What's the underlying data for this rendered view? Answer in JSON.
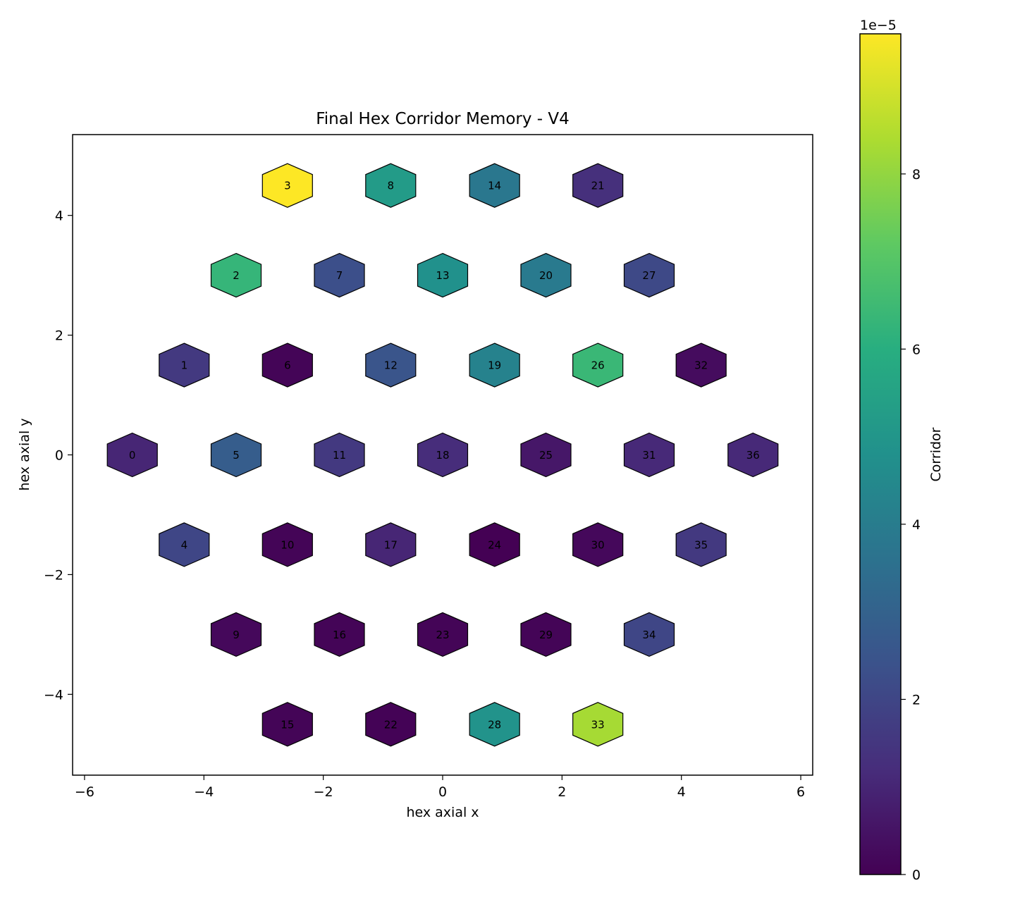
{
  "chart_data": {
    "type": "hexbin-scatter",
    "title": "Final Hex Corridor Memory - V4",
    "xlabel": "hex axial x",
    "ylabel": "hex axial y",
    "xlim": [
      -6.2,
      6.2
    ],
    "ylim": [
      -5.35,
      5.35
    ],
    "xticks": [
      -6,
      -4,
      -2,
      0,
      2,
      4,
      6
    ],
    "yticks": [
      -4,
      -2,
      0,
      2,
      4
    ],
    "xtick_labels": [
      "−6",
      "−4",
      "−2",
      "0",
      "2",
      "4",
      "6"
    ],
    "ytick_labels": [
      "−4",
      "−2",
      "0",
      "2",
      "4"
    ],
    "colorbar": {
      "label": "Corridor",
      "colormap": "viridis",
      "scale_label": "1e−5",
      "range": [
        0,
        9.6
      ],
      "ticks": [
        0,
        2,
        4,
        6,
        8
      ],
      "tick_labels": [
        "0",
        "2",
        "4",
        "6",
        "8"
      ]
    },
    "cells": [
      {
        "id": "0",
        "x": -5.2,
        "y": 0.0,
        "value": 1.0
      },
      {
        "id": "1",
        "x": -4.33,
        "y": 1.5,
        "value": 1.6
      },
      {
        "id": "2",
        "x": -3.46,
        "y": 3.0,
        "value": 6.3
      },
      {
        "id": "3",
        "x": -2.6,
        "y": 4.5,
        "value": 9.6
      },
      {
        "id": "4",
        "x": -4.33,
        "y": -1.5,
        "value": 2.0
      },
      {
        "id": "5",
        "x": -3.46,
        "y": 0.0,
        "value": 2.8
      },
      {
        "id": "6",
        "x": -2.6,
        "y": 1.5,
        "value": 0.1
      },
      {
        "id": "7",
        "x": -1.73,
        "y": 3.0,
        "value": 2.3
      },
      {
        "id": "8",
        "x": -0.87,
        "y": 4.5,
        "value": 5.2
      },
      {
        "id": "9",
        "x": -3.46,
        "y": -3.0,
        "value": 0.2
      },
      {
        "id": "10",
        "x": -2.6,
        "y": -1.5,
        "value": 0.1
      },
      {
        "id": "11",
        "x": -1.73,
        "y": 0.0,
        "value": 1.6
      },
      {
        "id": "12",
        "x": -0.87,
        "y": 1.5,
        "value": 2.5
      },
      {
        "id": "13",
        "x": 0.0,
        "y": 3.0,
        "value": 4.8
      },
      {
        "id": "14",
        "x": 0.87,
        "y": 4.5,
        "value": 3.8
      },
      {
        "id": "15",
        "x": -2.6,
        "y": -4.5,
        "value": 0.1
      },
      {
        "id": "16",
        "x": -1.73,
        "y": -3.0,
        "value": 0.1
      },
      {
        "id": "17",
        "x": -0.87,
        "y": -1.5,
        "value": 1.0
      },
      {
        "id": "18",
        "x": 0.0,
        "y": 0.0,
        "value": 1.2
      },
      {
        "id": "19",
        "x": 0.87,
        "y": 1.5,
        "value": 4.2
      },
      {
        "id": "20",
        "x": 1.73,
        "y": 3.0,
        "value": 3.9
      },
      {
        "id": "21",
        "x": 2.6,
        "y": 4.5,
        "value": 1.3
      },
      {
        "id": "22",
        "x": -0.87,
        "y": -4.5,
        "value": 0.05
      },
      {
        "id": "23",
        "x": 0.0,
        "y": -3.0,
        "value": 0.1
      },
      {
        "id": "24",
        "x": 0.87,
        "y": -1.5,
        "value": 0.0
      },
      {
        "id": "25",
        "x": 1.73,
        "y": 0.0,
        "value": 0.6
      },
      {
        "id": "26",
        "x": 2.6,
        "y": 1.5,
        "value": 6.4
      },
      {
        "id": "27",
        "x": 3.46,
        "y": 3.0,
        "value": 2.1
      },
      {
        "id": "28",
        "x": 0.87,
        "y": -4.5,
        "value": 4.9
      },
      {
        "id": "29",
        "x": 1.73,
        "y": -3.0,
        "value": 0.1
      },
      {
        "id": "30",
        "x": 2.6,
        "y": -1.5,
        "value": 0.2
      },
      {
        "id": "31",
        "x": 3.46,
        "y": 0.0,
        "value": 1.1
      },
      {
        "id": "32",
        "x": 4.33,
        "y": 1.5,
        "value": 0.3
      },
      {
        "id": "33",
        "x": 2.6,
        "y": -4.5,
        "value": 8.3
      },
      {
        "id": "34",
        "x": 3.46,
        "y": -3.0,
        "value": 2.0
      },
      {
        "id": "35",
        "x": 4.33,
        "y": -1.5,
        "value": 1.6
      },
      {
        "id": "36",
        "x": 5.2,
        "y": 0.0,
        "value": 1.1
      }
    ]
  }
}
